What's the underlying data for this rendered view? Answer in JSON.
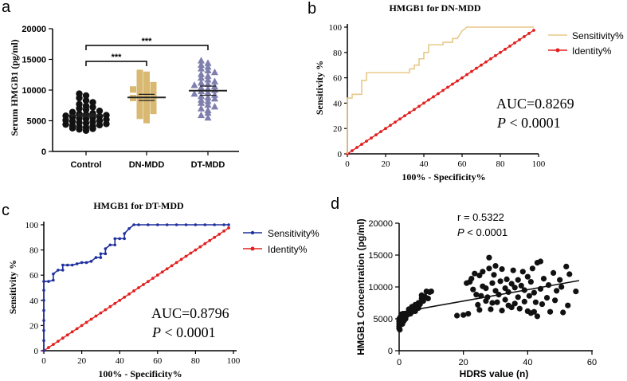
{
  "panels": {
    "a": {
      "letter": "a"
    },
    "b": {
      "letter": "b"
    },
    "c": {
      "letter": "c"
    },
    "d": {
      "letter": "d"
    }
  },
  "colors": {
    "control": "#111111",
    "dn": "#d9b872",
    "dt": "#7f7fae",
    "b_sens": "#e8c98a",
    "identity": "#e0211f",
    "c_sens": "#1f2f9e",
    "scatter": "#111111"
  },
  "chart_data": [
    {
      "id": "a",
      "type": "scatter",
      "title": "",
      "xlabel": "",
      "ylabel": "Serum HMGB1 (pg/ml)",
      "ylim": [
        0,
        20000
      ],
      "yticks": [
        "0",
        "5000",
        "10000",
        "15000",
        "20000"
      ],
      "categories": [
        "Control",
        "DN-MDD",
        "DT-MDD"
      ],
      "means": [
        5900,
        8800,
        9900
      ],
      "sig_labels": [
        "***",
        "***"
      ],
      "series": [
        {
          "name": "Control",
          "values": [
            3400,
            3600,
            3700,
            3800,
            3900,
            4000,
            4100,
            4200,
            4300,
            4400,
            4500,
            4600,
            4700,
            4800,
            4900,
            5000,
            5100,
            5200,
            5300,
            5400,
            5500,
            5600,
            5700,
            5800,
            5900,
            6000,
            6100,
            6200,
            6400,
            6600,
            6800,
            7000,
            7200,
            7400,
            7700,
            8000,
            8300,
            8700,
            9100,
            9400
          ]
        },
        {
          "name": "DN-MDD",
          "values": [
            5100,
            5500,
            5800,
            6000,
            6300,
            6600,
            6900,
            7100,
            7300,
            7500,
            7700,
            7900,
            8100,
            8300,
            8500,
            8700,
            8900,
            9100,
            9300,
            9500,
            9700,
            9900,
            10100,
            10300,
            10500,
            10800,
            11100,
            11400,
            11700,
            12100,
            12500,
            12800
          ]
        },
        {
          "name": "DT-MDD",
          "values": [
            5500,
            5900,
            6300,
            6700,
            7000,
            7300,
            7600,
            7900,
            8200,
            8400,
            8600,
            8800,
            9000,
            9200,
            9400,
            9600,
            9800,
            10000,
            10200,
            10400,
            10600,
            10800,
            11000,
            11200,
            11400,
            11700,
            12000,
            12300,
            12600,
            12900,
            13200,
            13500,
            13800,
            14100,
            14400,
            14800
          ]
        }
      ]
    },
    {
      "id": "b",
      "type": "line",
      "title": "HMGB1 for DN-MDD",
      "xlabel": "100% - Specificity%",
      "ylabel": "Sensitivity %",
      "xlim": [
        0,
        100
      ],
      "ylim": [
        0,
        100
      ],
      "ticks": [
        "0",
        "20",
        "40",
        "60",
        "80",
        "100"
      ],
      "legend": [
        "Sensitivity%",
        "Identity%"
      ],
      "annotation": {
        "auc": "AUC=0.8269",
        "p_sym": "P",
        "p_rest": " < 0.0001"
      },
      "series": [
        {
          "name": "Sensitivity%",
          "x": [
            0,
            0,
            0,
            0,
            0,
            0,
            2.5,
            2.5,
            5,
            7.5,
            7.5,
            10,
            10,
            12.5,
            15,
            17.5,
            20,
            22.5,
            25,
            27.5,
            30,
            32.5,
            32.5,
            35,
            35,
            37.5,
            37.5,
            40,
            40,
            42.5,
            42.5,
            45,
            47.5,
            50,
            50,
            52.5,
            55,
            55,
            57.5,
            60,
            62.5,
            70,
            80,
            90,
            97.5
          ],
          "y": [
            0,
            5,
            15,
            25,
            35,
            44,
            44,
            47,
            47,
            47,
            58,
            58,
            64,
            64,
            64,
            64,
            64,
            64,
            64,
            64,
            64,
            64,
            67,
            67,
            70,
            70,
            75,
            75,
            80,
            80,
            86,
            86,
            86,
            86,
            88,
            88,
            88,
            91,
            91,
            97,
            100,
            100,
            100,
            100,
            100
          ]
        },
        {
          "name": "Identity%",
          "x": [
            0,
            2.5,
            5,
            7.5,
            10,
            12.5,
            15,
            17.5,
            20,
            22.5,
            25,
            27.5,
            30,
            32.5,
            35,
            37.5,
            40,
            42.5,
            45,
            47.5,
            50,
            52.5,
            55,
            57.5,
            60,
            62.5,
            65,
            67.5,
            70,
            72.5,
            75,
            77.5,
            80,
            82.5,
            85,
            87.5,
            90,
            92.5,
            95,
            97.5
          ],
          "y": [
            0,
            2.5,
            5,
            7.5,
            10,
            12.5,
            15,
            17.5,
            20,
            22.5,
            25,
            27.5,
            30,
            32.5,
            35,
            37.5,
            40,
            42.5,
            45,
            47.5,
            50,
            52.5,
            55,
            57.5,
            60,
            62.5,
            65,
            67.5,
            70,
            72.5,
            75,
            77.5,
            80,
            82.5,
            85,
            87.5,
            90,
            92.5,
            95,
            97.5
          ]
        }
      ]
    },
    {
      "id": "c",
      "type": "line",
      "title": "HMGB1 for DT-MDD",
      "xlabel": "100% - Specificity%",
      "ylabel": "Sensitivity %",
      "xlim": [
        0,
        100
      ],
      "ylim": [
        0,
        100
      ],
      "ticks": [
        "0",
        "20",
        "40",
        "60",
        "80",
        "100"
      ],
      "legend": [
        "Sensitivity%",
        "Identity%"
      ],
      "annotation": {
        "auc": "AUC=0.8796",
        "p_sym": "P",
        "p_rest": " < 0.0001"
      },
      "series": [
        {
          "name": "Sensitivity%",
          "x": [
            0,
            0,
            0,
            0,
            0,
            0,
            0,
            0,
            2.5,
            5,
            5,
            7.5,
            10,
            10,
            12.5,
            15,
            17.5,
            20,
            22.5,
            25,
            27.5,
            30,
            30,
            32.5,
            32.5,
            35,
            37.5,
            37.5,
            40,
            42.5,
            42.5,
            45,
            47.5,
            50,
            55,
            60,
            65,
            70,
            75,
            80,
            85,
            90,
            95,
            97.5
          ],
          "y": [
            0,
            8,
            16,
            24,
            32,
            40,
            48,
            55,
            55,
            56,
            61,
            64,
            64,
            68,
            68,
            68,
            69,
            70,
            70,
            71,
            74,
            74,
            77,
            77,
            81,
            84,
            84,
            89,
            89,
            89,
            93,
            97,
            100,
            100,
            100,
            100,
            100,
            100,
            100,
            100,
            100,
            100,
            100,
            100
          ]
        },
        {
          "name": "Identity%",
          "x": [
            0,
            2.5,
            5,
            7.5,
            10,
            12.5,
            15,
            17.5,
            20,
            22.5,
            25,
            27.5,
            30,
            32.5,
            35,
            37.5,
            40,
            42.5,
            45,
            47.5,
            50,
            52.5,
            55,
            57.5,
            60,
            62.5,
            65,
            67.5,
            70,
            72.5,
            75,
            77.5,
            80,
            82.5,
            85,
            87.5,
            90,
            92.5,
            95,
            97.5
          ],
          "y": [
            0,
            2.5,
            5,
            7.5,
            10,
            12.5,
            15,
            17.5,
            20,
            22.5,
            25,
            27.5,
            30,
            32.5,
            35,
            37.5,
            40,
            42.5,
            45,
            47.5,
            50,
            52.5,
            55,
            57.5,
            60,
            62.5,
            65,
            67.5,
            70,
            72.5,
            75,
            77.5,
            80,
            82.5,
            85,
            87.5,
            90,
            92.5,
            95,
            97.5
          ]
        }
      ]
    },
    {
      "id": "d",
      "type": "scatter",
      "title": "",
      "xlabel": "HDRS value (n)",
      "ylabel": "HMGB1 Concentration (pg/ml)",
      "xlim": [
        0,
        60
      ],
      "ylim": [
        0,
        20000
      ],
      "xticks": [
        "0",
        "20",
        "40",
        "60"
      ],
      "yticks": [
        "0",
        "5000",
        "10000",
        "15000",
        "20000"
      ],
      "annotation": {
        "r": "r = 0.5322",
        "p_sym": "P",
        "p_rest": " < 0.0001"
      },
      "fit": {
        "x": [
          0,
          56
        ],
        "y": [
          6000,
          11000
        ]
      },
      "points": [
        [
          0,
          3500
        ],
        [
          0,
          3800
        ],
        [
          0,
          4200
        ],
        [
          0,
          4600
        ],
        [
          0,
          5000
        ],
        [
          0.2,
          3300
        ],
        [
          0.3,
          4000
        ],
        [
          0.5,
          4500
        ],
        [
          0.5,
          5400
        ],
        [
          0.8,
          5600
        ],
        [
          1,
          4200
        ],
        [
          1,
          5000
        ],
        [
          1.2,
          5800
        ],
        [
          1.5,
          4700
        ],
        [
          1.5,
          5500
        ],
        [
          2,
          5000
        ],
        [
          2,
          5700
        ],
        [
          2.5,
          5600
        ],
        [
          3,
          6000
        ],
        [
          3,
          6500
        ],
        [
          3.5,
          5800
        ],
        [
          4,
          6100
        ],
        [
          4,
          6900
        ],
        [
          4.5,
          6600
        ],
        [
          5,
          6200
        ],
        [
          5,
          7200
        ],
        [
          5.5,
          7000
        ],
        [
          6,
          6700
        ],
        [
          6,
          7500
        ],
        [
          6.5,
          7300
        ],
        [
          7,
          8200
        ],
        [
          7,
          8700
        ],
        [
          7.5,
          7800
        ],
        [
          8,
          8500
        ],
        [
          8.5,
          9300
        ],
        [
          9,
          8200
        ],
        [
          9.5,
          9200
        ],
        [
          10,
          9300
        ],
        [
          18,
          5500
        ],
        [
          20,
          5600
        ],
        [
          21,
          10600
        ],
        [
          21.5,
          5800
        ],
        [
          22,
          10800
        ],
        [
          22.5,
          11300
        ],
        [
          23,
          9600
        ],
        [
          23.5,
          12100
        ],
        [
          24,
          8800
        ],
        [
          24.5,
          7200
        ],
        [
          25,
          6400
        ],
        [
          25,
          11800
        ],
        [
          25.5,
          8600
        ],
        [
          26,
          12400
        ],
        [
          26,
          10100
        ],
        [
          27,
          7800
        ],
        [
          27,
          9800
        ],
        [
          27.5,
          8400
        ],
        [
          28,
          14600
        ],
        [
          28,
          12900
        ],
        [
          28.5,
          6500
        ],
        [
          29,
          10600
        ],
        [
          29,
          7500
        ],
        [
          29.5,
          11900
        ],
        [
          30,
          9400
        ],
        [
          30,
          13300
        ],
        [
          30.5,
          7600
        ],
        [
          31,
          8800
        ],
        [
          31.5,
          10900
        ],
        [
          32,
          6300
        ],
        [
          32,
          12800
        ],
        [
          33,
          9800
        ],
        [
          33,
          8000
        ],
        [
          33.5,
          11200
        ],
        [
          34,
          7100
        ],
        [
          34,
          9200
        ],
        [
          35,
          6800
        ],
        [
          35,
          10500
        ],
        [
          35.5,
          12600
        ],
        [
          36,
          7400
        ],
        [
          36,
          9900
        ],
        [
          37,
          8400
        ],
        [
          37,
          11100
        ],
        [
          37.5,
          6600
        ],
        [
          38,
          10200
        ],
        [
          38.5,
          12400
        ],
        [
          39,
          9500
        ],
        [
          39,
          7700
        ],
        [
          40,
          6200
        ],
        [
          40,
          11600
        ],
        [
          40.5,
          8600
        ],
        [
          41,
          5900
        ],
        [
          41,
          10800
        ],
        [
          41.5,
          12900
        ],
        [
          42,
          6100
        ],
        [
          42,
          9100
        ],
        [
          42.5,
          7600
        ],
        [
          43,
          13800
        ],
        [
          43,
          5400
        ],
        [
          44,
          9700
        ],
        [
          44,
          14000
        ],
        [
          44.5,
          7300
        ],
        [
          45,
          11300
        ],
        [
          46,
          8300
        ],
        [
          46.5,
          10300
        ],
        [
          47,
          6100
        ],
        [
          48,
          12200
        ],
        [
          48.5,
          7900
        ],
        [
          49,
          9400
        ],
        [
          50,
          11100
        ],
        [
          50.5,
          10000
        ],
        [
          51,
          6000
        ],
        [
          52,
          13200
        ],
        [
          52.5,
          7100
        ],
        [
          53,
          12000
        ],
        [
          55,
          9300
        ]
      ]
    }
  ]
}
